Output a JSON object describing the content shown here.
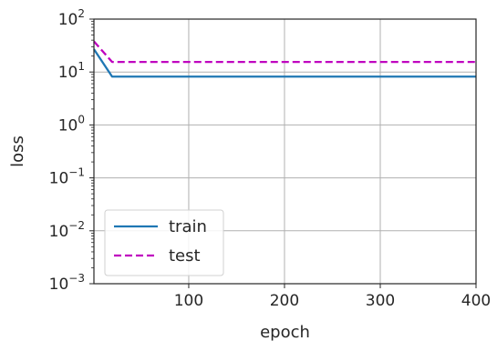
{
  "chart_data": {
    "type": "line",
    "xlabel": "epoch",
    "ylabel": "loss",
    "xlim": [
      1,
      400
    ],
    "ylim": [
      0.001,
      100
    ],
    "yscale": "log",
    "grid": true,
    "legend_position": "lower-left",
    "x_ticks": [
      {
        "value": 100,
        "label": "100"
      },
      {
        "value": 200,
        "label": "200"
      },
      {
        "value": 300,
        "label": "300"
      },
      {
        "value": 400,
        "label": "400"
      }
    ],
    "y_ticks": [
      {
        "value": 0.001,
        "base": "10",
        "exp": "−3"
      },
      {
        "value": 0.01,
        "base": "10",
        "exp": "−2"
      },
      {
        "value": 0.1,
        "base": "10",
        "exp": "−1"
      },
      {
        "value": 1,
        "base": "10",
        "exp": "0"
      },
      {
        "value": 10,
        "base": "10",
        "exp": "1"
      },
      {
        "value": 100,
        "base": "10",
        "exp": "2"
      }
    ],
    "series": [
      {
        "name": "train",
        "color": "#1f77b4",
        "dash": "solid",
        "points": [
          [
            1,
            27
          ],
          [
            20,
            8.2
          ],
          [
            400,
            8.2
          ]
        ]
      },
      {
        "name": "test",
        "color": "#bf00bf",
        "dash": "dashed",
        "points": [
          [
            1,
            38
          ],
          [
            20,
            15.5
          ],
          [
            400,
            15.5
          ]
        ]
      }
    ]
  }
}
